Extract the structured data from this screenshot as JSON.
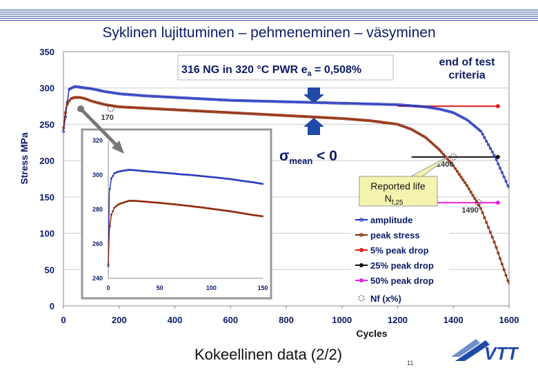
{
  "slide": {
    "title": "Syklinen lujittuminen – pehmeneminen – väsyminen",
    "footer": "Kokeellinen data (2/2)",
    "page_number": "11",
    "logo_text": "VTT"
  },
  "colors": {
    "amplitude": "#2233bb",
    "peak_stress": "#8b2200",
    "drop5": "#e01b1b",
    "drop25": "#111111",
    "drop50": "#e020e0",
    "arrow_blue": "#1f4aa8",
    "callout_fill": "#f4f4b0",
    "inset_border": "#999999"
  },
  "chart_data": [
    {
      "type": "line",
      "title": "",
      "xlabel": "Cycles",
      "ylabel": "Stress MPa",
      "xlim": [
        0,
        1600
      ],
      "ylim": [
        0,
        350
      ],
      "x_ticks": [
        "0",
        "200",
        "400",
        "600",
        "800",
        "1000",
        "1200",
        "1400",
        "1600"
      ],
      "y_ticks": [
        "0",
        "50",
        "100",
        "150",
        "200",
        "250",
        "300",
        "350"
      ],
      "series": [
        {
          "name": "amplitude",
          "x": [
            0,
            20,
            40,
            60,
            100,
            150,
            200,
            300,
            400,
            500,
            600,
            700,
            800,
            900,
            1000,
            1100,
            1200,
            1300,
            1350,
            1400,
            1450,
            1500,
            1550,
            1600
          ],
          "y": [
            240,
            298,
            302,
            301,
            299,
            295,
            292,
            289,
            287,
            285,
            283,
            282,
            281,
            280,
            279,
            278,
            277,
            274,
            271,
            266,
            256,
            240,
            205,
            162
          ]
        },
        {
          "name": "peak stress",
          "x": [
            0,
            10,
            25,
            40,
            60,
            80,
            100,
            150,
            200,
            300,
            400,
            500,
            600,
            700,
            800,
            900,
            1000,
            1100,
            1200,
            1250,
            1300,
            1350,
            1400,
            1450,
            1500,
            1550,
            1600
          ],
          "y": [
            245,
            275,
            285,
            287,
            287,
            285,
            282,
            277,
            274,
            272,
            270,
            268,
            266,
            264,
            262,
            260,
            258,
            255,
            250,
            243,
            232,
            215,
            193,
            165,
            133,
            85,
            30
          ]
        }
      ],
      "criteria_lines": [
        {
          "name": "5% peak drop",
          "y": 275,
          "x_start": 1200,
          "x_end": 1560
        },
        {
          "name": "25% peak drop",
          "y": 205,
          "x_start": 1250,
          "x_end": 1560
        },
        {
          "name": "50% peak drop",
          "y": 142,
          "x_start": 1330,
          "x_end": 1560
        }
      ],
      "nf_markers": [
        {
          "label": "170",
          "x": 170,
          "y": 272
        },
        {
          "label": "1400",
          "x": 1400,
          "y": 205
        },
        {
          "label": "1490",
          "x": 1490,
          "y": 142
        }
      ],
      "legend": {
        "placement": "bottom-right",
        "entries": [
          "amplitude",
          "peak stress",
          "5% peak drop",
          "25% peak drop",
          "50% peak drop",
          "Nf (x%)"
        ]
      },
      "annotations": {
        "spec_box": "316 NG in 320 °C PWR  e",
        "spec_sub": "a",
        "spec_tail": " = 0,508%",
        "end_test": [
          "end of test",
          "criteria"
        ],
        "sigma": "σ",
        "sigma_sub": "mean",
        "sigma_tail": " < 0",
        "reported": [
          "Reported life",
          "N",
          "f,25"
        ]
      }
    },
    {
      "type": "line",
      "title": "",
      "xlim": [
        0,
        150
      ],
      "ylim": [
        240,
        320
      ],
      "x_ticks": [
        "0",
        "50",
        "100",
        "150"
      ],
      "y_ticks": [
        "240",
        "260",
        "280",
        "300",
        "320"
      ],
      "series": [
        {
          "name": "amplitude",
          "x": [
            0,
            1,
            3,
            6,
            10,
            15,
            20,
            25,
            30,
            40,
            50,
            60,
            70,
            80,
            90,
            100,
            110,
            120,
            130,
            140,
            150
          ],
          "y": [
            247,
            290,
            298,
            301,
            302,
            302.5,
            303,
            302.8,
            302.5,
            302,
            301.5,
            301,
            300.4,
            300,
            299.4,
            298.8,
            298.2,
            297.5,
            296.6,
            295.8,
            294.8
          ]
        },
        {
          "name": "peak stress",
          "x": [
            0,
            1,
            3,
            6,
            10,
            15,
            20,
            25,
            30,
            40,
            50,
            60,
            70,
            80,
            90,
            100,
            110,
            120,
            130,
            140,
            150
          ],
          "y": [
            248,
            268,
            277,
            281,
            283,
            284,
            285,
            285,
            284.8,
            284.3,
            283.8,
            283.2,
            282.6,
            281.9,
            281.2,
            280.4,
            279.6,
            278.8,
            277.8,
            276.8,
            276
          ]
        }
      ]
    }
  ]
}
